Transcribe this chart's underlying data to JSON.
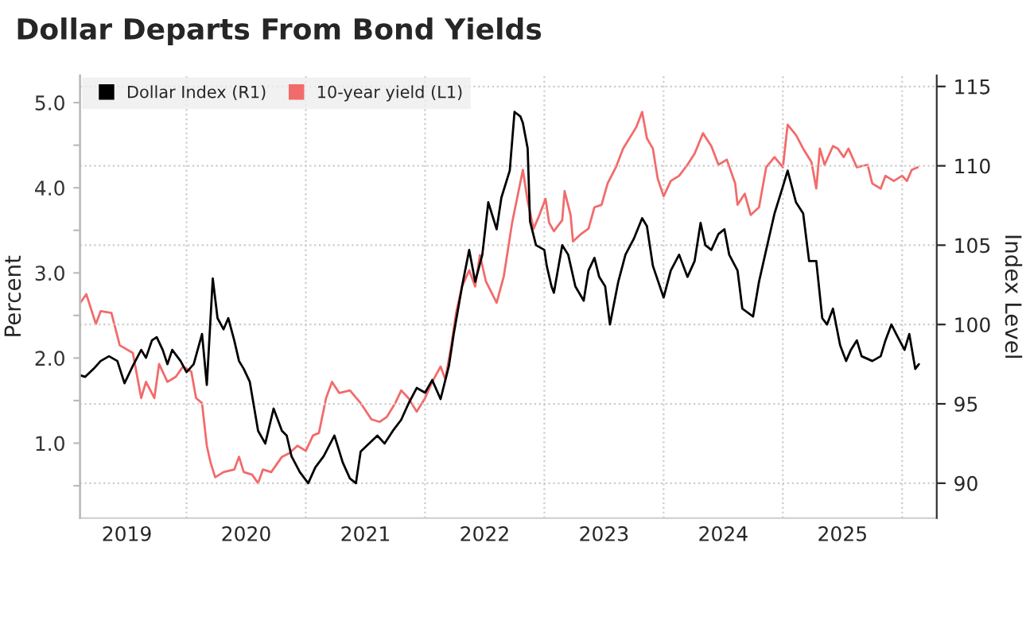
{
  "chart_data": {
    "type": "line",
    "title": "Dollar Departs From Bond Yields",
    "ylabel": "Percent",
    "y2label": "Index Level",
    "xlim": [
      2019.107,
      2026.29
    ],
    "xticks": [
      {
        "value": 2020,
        "label": null
      },
      {
        "value": 2021,
        "label": null
      },
      {
        "value": 2022,
        "label": null
      },
      {
        "value": 2023,
        "label": null
      },
      {
        "value": 2024,
        "label": null
      },
      {
        "value": 2025,
        "label": null
      },
      {
        "value": 2026,
        "label": null
      },
      {
        "value": 2019.5,
        "label": "2019"
      },
      {
        "value": 2020.5,
        "label": "2020"
      },
      {
        "value": 2021.5,
        "label": "2021"
      },
      {
        "value": 2022.5,
        "label": "2022"
      },
      {
        "value": 2023.5,
        "label": "2023"
      },
      {
        "value": 2024.5,
        "label": "2024"
      },
      {
        "value": 2025.5,
        "label": "2025"
      }
    ],
    "ylim": [
      0.12,
      5.32
    ],
    "yticks": [
      {
        "value": 0.5,
        "label": null
      },
      {
        "value": 1,
        "label": "1.0"
      },
      {
        "value": 1.5,
        "label": null
      },
      {
        "value": 2,
        "label": "2.0"
      },
      {
        "value": 2.5,
        "label": null
      },
      {
        "value": 3,
        "label": "3.0"
      },
      {
        "value": 3.5,
        "label": null
      },
      {
        "value": 4,
        "label": "4.0"
      },
      {
        "value": 4.5,
        "label": null
      },
      {
        "value": 5,
        "label": "5.0"
      }
    ],
    "y2lim": [
      87.8,
      115.7
    ],
    "y2ticks": [
      90,
      95,
      100,
      105,
      110,
      115
    ],
    "grid": true,
    "legend": "top left",
    "line_style": "solid",
    "marker": "none",
    "series": [
      {
        "name": "Dollar Index (R1)",
        "color": "#000000",
        "axis": "y2",
        "x": [
          2019.11,
          2019.15,
          2019.22,
          2019.28,
          2019.35,
          2019.42,
          2019.48,
          2019.55,
          2019.62,
          2019.66,
          2019.71,
          2019.75,
          2019.8,
          2019.84,
          2019.88,
          2019.95,
          2020.0,
          2020.06,
          2020.13,
          2020.17,
          2020.22,
          2020.26,
          2020.31,
          2020.35,
          2020.4,
          2020.44,
          2020.48,
          2020.53,
          2020.6,
          2020.66,
          2020.73,
          2020.8,
          2020.84,
          2020.88,
          2020.95,
          2021.02,
          2021.08,
          2021.15,
          2021.24,
          2021.31,
          2021.37,
          2021.42,
          2021.46,
          2021.53,
          2021.6,
          2021.66,
          2021.73,
          2021.8,
          2021.86,
          2021.93,
          2022.0,
          2022.06,
          2022.13,
          2022.2,
          2022.24,
          2022.31,
          2022.37,
          2022.42,
          2022.48,
          2022.53,
          2022.6,
          2022.64,
          2022.71,
          2022.75,
          2022.8,
          2022.82,
          2022.86,
          2022.88,
          2022.93,
          2023.0,
          2023.02,
          2023.06,
          2023.08,
          2023.15,
          2023.2,
          2023.26,
          2023.33,
          2023.37,
          2023.42,
          2023.46,
          2023.51,
          2023.55,
          2023.62,
          2023.68,
          2023.75,
          2023.82,
          2023.86,
          2023.91,
          2024.0,
          2024.06,
          2024.13,
          2024.2,
          2024.26,
          2024.31,
          2024.35,
          2024.4,
          2024.46,
          2024.51,
          2024.55,
          2024.62,
          2024.66,
          2024.75,
          2024.8,
          2024.86,
          2024.93,
          2025.0,
          2025.04,
          2025.11,
          2025.17,
          2025.22,
          2025.28,
          2025.33,
          2025.37,
          2025.42,
          2025.48,
          2025.53,
          2025.57,
          2025.62,
          2025.66,
          2025.75,
          2025.82,
          2025.86,
          2025.91,
          2025.95,
          2026.02,
          2026.06,
          2026.11,
          2026.14
        ],
        "values": [
          96.8,
          96.7,
          97.2,
          97.7,
          98.0,
          97.7,
          96.3,
          97.4,
          98.4,
          97.9,
          99.0,
          99.2,
          98.4,
          97.5,
          98.4,
          97.7,
          97.0,
          97.5,
          99.4,
          96.2,
          102.9,
          100.4,
          99.7,
          100.4,
          99.0,
          97.7,
          97.2,
          96.4,
          93.3,
          92.5,
          94.7,
          93.3,
          93.0,
          91.7,
          90.7,
          90.0,
          91.0,
          91.7,
          93.0,
          91.3,
          90.3,
          90.0,
          92.0,
          92.5,
          93.0,
          92.5,
          93.3,
          94.0,
          95.0,
          96.0,
          95.7,
          96.5,
          95.3,
          97.4,
          99.4,
          102.4,
          104.7,
          102.7,
          104.4,
          107.7,
          106.0,
          108.0,
          109.7,
          113.4,
          113.1,
          112.7,
          111.1,
          106.5,
          105.0,
          104.7,
          103.7,
          102.4,
          102.0,
          105.0,
          104.4,
          102.4,
          101.5,
          103.4,
          104.2,
          103.0,
          102.4,
          100.0,
          102.7,
          104.4,
          105.4,
          106.7,
          106.2,
          103.7,
          101.7,
          103.4,
          104.4,
          103.0,
          104.0,
          106.4,
          105.0,
          104.7,
          105.7,
          106.0,
          104.4,
          103.4,
          101.0,
          100.5,
          102.7,
          104.7,
          107.0,
          108.7,
          109.7,
          107.7,
          107.0,
          104.0,
          104.0,
          100.4,
          100.0,
          101.0,
          98.7,
          97.7,
          98.4,
          99.0,
          98.0,
          97.7,
          98.0,
          99.0,
          100.0,
          99.4,
          98.4,
          99.4,
          97.2,
          97.5
        ]
      },
      {
        "name": "10-year yield (L1)",
        "color": "#f26b6b",
        "x": [
          2019.11,
          2019.16,
          2019.24,
          2019.28,
          2019.37,
          2019.44,
          2019.55,
          2019.62,
          2019.66,
          2019.73,
          2019.77,
          2019.84,
          2019.91,
          2019.97,
          2020.04,
          2020.08,
          2020.13,
          2020.17,
          2020.2,
          2020.24,
          2020.31,
          2020.4,
          2020.44,
          2020.48,
          2020.55,
          2020.6,
          2020.64,
          2020.71,
          2020.8,
          2020.86,
          2020.93,
          2021.0,
          2021.06,
          2021.11,
          2021.17,
          2021.22,
          2021.28,
          2021.37,
          2021.46,
          2021.55,
          2021.62,
          2021.68,
          2021.75,
          2021.8,
          2021.86,
          2021.93,
          2022.0,
          2022.06,
          2022.13,
          2022.17,
          2022.22,
          2022.26,
          2022.31,
          2022.37,
          2022.42,
          2022.46,
          2022.51,
          2022.6,
          2022.66,
          2022.73,
          2022.82,
          2022.86,
          2022.91,
          2022.95,
          2023.01,
          2023.04,
          2023.08,
          2023.15,
          2023.17,
          2023.22,
          2023.24,
          2023.31,
          2023.37,
          2023.42,
          2023.48,
          2023.53,
          2023.6,
          2023.66,
          2023.77,
          2023.82,
          2023.86,
          2023.91,
          2023.95,
          2024.0,
          2024.06,
          2024.13,
          2024.2,
          2024.26,
          2024.33,
          2024.4,
          2024.46,
          2024.53,
          2024.6,
          2024.62,
          2024.68,
          2024.73,
          2024.8,
          2024.86,
          2024.93,
          2025.0,
          2025.04,
          2025.11,
          2025.17,
          2025.24,
          2025.28,
          2025.31,
          2025.35,
          2025.42,
          2025.46,
          2025.51,
          2025.55,
          2025.62,
          2025.71,
          2025.75,
          2025.82,
          2025.86,
          2025.93,
          2026.0,
          2026.04,
          2026.08,
          2026.13
        ],
        "values": [
          2.65,
          2.75,
          2.4,
          2.55,
          2.53,
          2.15,
          2.06,
          1.53,
          1.72,
          1.53,
          1.93,
          1.72,
          1.78,
          1.9,
          1.84,
          1.53,
          1.47,
          0.97,
          0.78,
          0.6,
          0.66,
          0.69,
          0.84,
          0.66,
          0.63,
          0.53,
          0.69,
          0.66,
          0.84,
          0.88,
          0.97,
          0.91,
          1.09,
          1.12,
          1.53,
          1.72,
          1.59,
          1.62,
          1.47,
          1.28,
          1.25,
          1.31,
          1.47,
          1.62,
          1.53,
          1.37,
          1.53,
          1.72,
          1.9,
          1.75,
          2.15,
          2.53,
          2.84,
          3.03,
          2.84,
          3.21,
          2.9,
          2.65,
          2.96,
          3.59,
          4.21,
          3.84,
          3.52,
          3.65,
          3.87,
          3.59,
          3.49,
          3.62,
          3.96,
          3.68,
          3.37,
          3.46,
          3.52,
          3.77,
          3.8,
          4.05,
          4.24,
          4.46,
          4.71,
          4.89,
          4.58,
          4.46,
          4.11,
          3.9,
          4.08,
          4.14,
          4.27,
          4.4,
          4.64,
          4.49,
          4.27,
          4.33,
          4.05,
          3.8,
          3.93,
          3.68,
          3.77,
          4.24,
          4.36,
          4.24,
          4.74,
          4.62,
          4.46,
          4.3,
          3.99,
          4.46,
          4.27,
          4.49,
          4.46,
          4.36,
          4.46,
          4.24,
          4.27,
          4.05,
          3.99,
          4.14,
          4.08,
          4.14,
          4.08,
          4.21,
          4.24
        ]
      }
    ]
  }
}
